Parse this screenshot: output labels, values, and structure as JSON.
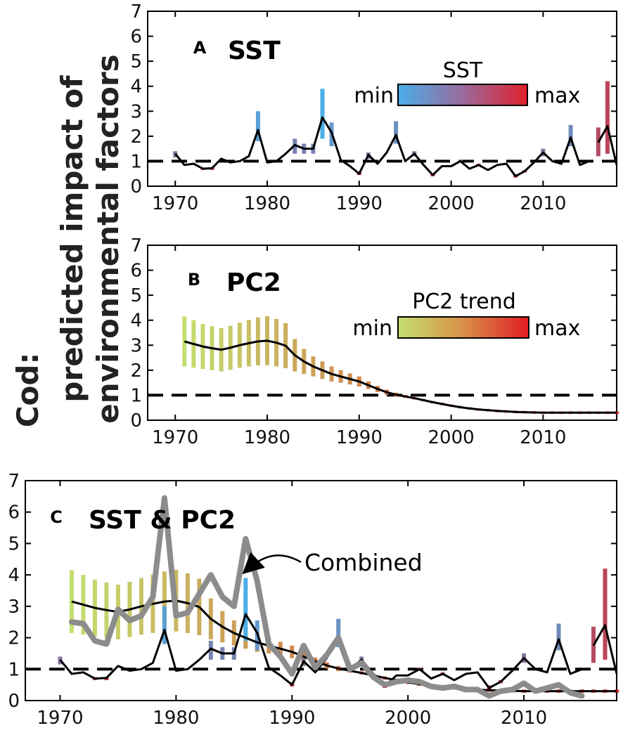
{
  "y_axis_label": {
    "line1": "Cod:",
    "line2": "predicted impact of",
    "line3": "environmental factors"
  },
  "colors": {
    "sst_min": "#4aaee8",
    "sst_max": "#e0202c",
    "pc2_min": "#c3e070",
    "pc2_max": "#e01c24",
    "combined": "#8c8c8c",
    "model_line": "#000000"
  },
  "chart_data": [
    {
      "type": "line",
      "panel_letter": "A",
      "title": "SST",
      "xlim": [
        1967,
        2018
      ],
      "ylim": [
        0,
        7
      ],
      "xticks": [
        1970,
        1980,
        1990,
        2000,
        2010
      ],
      "yticks": [
        0,
        1,
        2,
        3,
        4,
        5,
        6,
        7
      ],
      "reference_line": 1,
      "colorbar": {
        "label": "SST",
        "min_label": "min",
        "max_label": "max"
      },
      "x": [
        1970,
        1971,
        1972,
        1973,
        1974,
        1975,
        1976,
        1977,
        1978,
        1979,
        1980,
        1981,
        1982,
        1983,
        1984,
        1985,
        1986,
        1987,
        1988,
        1989,
        1990,
        1991,
        1992,
        1993,
        1994,
        1995,
        1996,
        1997,
        1998,
        1999,
        2000,
        2001,
        2002,
        2003,
        2004,
        2005,
        2006,
        2007,
        2008,
        2009,
        2010,
        2011,
        2012,
        2013,
        2014,
        2015
      ],
      "y": [
        1.3,
        0.85,
        0.9,
        0.7,
        0.72,
        1.1,
        0.95,
        1.0,
        1.2,
        2.25,
        0.95,
        1.0,
        1.3,
        1.65,
        1.5,
        1.5,
        2.75,
        2.15,
        1.05,
        0.8,
        0.5,
        1.25,
        0.9,
        1.35,
        2.05,
        1.0,
        1.3,
        0.85,
        0.45,
        0.8,
        0.8,
        1.0,
        0.7,
        0.85,
        0.65,
        0.85,
        0.9,
        0.4,
        0.6,
        0.95,
        1.35,
        1.0,
        0.9,
        1.95,
        0.85,
        1.0
      ],
      "bars": [
        {
          "x": 1970,
          "low": 1.15,
          "high": 1.4,
          "t": 0.4
        },
        {
          "x": 1973,
          "low": 0.65,
          "high": 0.75,
          "t": 0.85
        },
        {
          "x": 1974,
          "low": 0.65,
          "high": 0.75,
          "t": 0.85
        },
        {
          "x": 1979,
          "low": 1.8,
          "high": 3.0,
          "t": 0.1
        },
        {
          "x": 1983,
          "low": 1.3,
          "high": 1.9,
          "t": 0.3
        },
        {
          "x": 1984,
          "low": 1.3,
          "high": 1.7,
          "t": 0.3
        },
        {
          "x": 1985,
          "low": 1.3,
          "high": 1.7,
          "t": 0.3
        },
        {
          "x": 1986,
          "low": 1.9,
          "high": 3.9,
          "t": 0.0
        },
        {
          "x": 1987,
          "low": 1.6,
          "high": 2.55,
          "t": 0.15
        },
        {
          "x": 1990,
          "low": 0.45,
          "high": 0.58,
          "t": 0.9
        },
        {
          "x": 1991,
          "low": 1.1,
          "high": 1.35,
          "t": 0.4
        },
        {
          "x": 1994,
          "low": 1.7,
          "high": 2.6,
          "t": 0.2
        },
        {
          "x": 1996,
          "low": 1.2,
          "high": 1.4,
          "t": 0.4
        },
        {
          "x": 1998,
          "low": 0.4,
          "high": 0.52,
          "t": 0.9
        },
        {
          "x": 2001,
          "low": 0.95,
          "high": 1.05,
          "t": 0.5
        },
        {
          "x": 2003,
          "low": 0.8,
          "high": 0.9,
          "t": 0.7
        },
        {
          "x": 2007,
          "low": 0.35,
          "high": 0.48,
          "t": 0.95
        },
        {
          "x": 2008,
          "low": 0.55,
          "high": 0.65,
          "t": 0.8
        },
        {
          "x": 2010,
          "low": 1.2,
          "high": 1.5,
          "t": 0.4
        },
        {
          "x": 2013,
          "low": 1.6,
          "high": 2.45,
          "t": 0.25
        },
        {
          "x": 2016,
          "low": 1.2,
          "high": 2.35,
          "t": 0.7
        },
        {
          "x": 2017,
          "low": 1.3,
          "high": 4.2,
          "t": 0.75
        }
      ],
      "tail": {
        "x": [
          2016,
          2017,
          2018
        ],
        "y": [
          1.75,
          2.4,
          0.85
        ]
      }
    },
    {
      "type": "line",
      "panel_letter": "B",
      "title": "PC2",
      "xlim": [
        1967,
        2018
      ],
      "ylim": [
        0,
        7
      ],
      "xticks": [
        1970,
        1980,
        1990,
        2000,
        2010
      ],
      "yticks": [
        0,
        1,
        2,
        3,
        4,
        5,
        6,
        7
      ],
      "reference_line": 1,
      "colorbar": {
        "label": "PC2 trend",
        "min_label": "min",
        "max_label": "max"
      },
      "x": [
        1971,
        1972,
        1973,
        1974,
        1975,
        1976,
        1977,
        1978,
        1979,
        1980,
        1981,
        1982,
        1983,
        1984,
        1985,
        1986,
        1987,
        1988,
        1989,
        1990,
        1991,
        1992,
        1993,
        1994,
        1995,
        1996,
        1997,
        1998,
        1999,
        2000,
        2001,
        2002,
        2003,
        2004,
        2005,
        2006,
        2007,
        2008,
        2009,
        2010,
        2011,
        2012,
        2013,
        2014,
        2015,
        2016,
        2017,
        2018
      ],
      "y": [
        3.15,
        3.05,
        2.95,
        2.88,
        2.82,
        2.9,
        3.0,
        3.08,
        3.15,
        3.18,
        3.1,
        2.98,
        2.6,
        2.35,
        2.15,
        2.0,
        1.85,
        1.75,
        1.65,
        1.55,
        1.4,
        1.25,
        1.12,
        1.02,
        0.95,
        0.88,
        0.8,
        0.72,
        0.65,
        0.58,
        0.52,
        0.47,
        0.43,
        0.4,
        0.37,
        0.35,
        0.33,
        0.32,
        0.31,
        0.3,
        0.3,
        0.3,
        0.3,
        0.3,
        0.3,
        0.3,
        0.3,
        0.3
      ],
      "band_half_width": [
        1.0,
        0.95,
        0.9,
        0.88,
        0.87,
        0.88,
        0.9,
        0.93,
        0.96,
        0.98,
        0.95,
        0.9,
        0.65,
        0.5,
        0.4,
        0.35,
        0.3,
        0.25,
        0.22,
        0.2,
        0.15,
        0.12,
        0.1,
        0.08,
        0.06,
        0.05,
        0.05,
        0.05,
        0.05,
        0.05,
        0.05,
        0.05,
        0.05,
        0.05,
        0.05,
        0.05,
        0.05,
        0.05,
        0.05,
        0.05,
        0.05,
        0.05,
        0.05,
        0.05,
        0.05,
        0.05,
        0.05,
        0.05
      ]
    },
    {
      "type": "line",
      "panel_letter": "C",
      "title": "SST & PC2",
      "annotation": "Combined",
      "xlim": [
        1967,
        2018
      ],
      "ylim": [
        0,
        7
      ],
      "xticks": [
        1970,
        1980,
        1990,
        2000,
        2010
      ],
      "yticks": [
        0,
        1,
        2,
        3,
        4,
        5,
        6,
        7
      ],
      "reference_line": 1,
      "combined": {
        "x": [
          1971,
          1972,
          1973,
          1974,
          1975,
          1976,
          1977,
          1978,
          1979,
          1980,
          1981,
          1982,
          1983,
          1984,
          1985,
          1986,
          1987,
          1988,
          1989,
          1990,
          1991,
          1992,
          1993,
          1994,
          1995,
          1996,
          1997,
          1998,
          1999,
          2000,
          2001,
          2002,
          2003,
          2004,
          2005,
          2006,
          2007,
          2008,
          2009,
          2010,
          2011,
          2012,
          2013,
          2014,
          2015
        ],
        "y": [
          2.5,
          2.45,
          1.9,
          1.8,
          2.9,
          2.55,
          2.7,
          3.3,
          6.45,
          2.7,
          2.8,
          3.4,
          4.0,
          3.3,
          3.0,
          5.15,
          3.8,
          1.8,
          1.4,
          0.85,
          1.75,
          1.05,
          1.45,
          2.0,
          1.0,
          1.2,
          0.75,
          0.5,
          0.6,
          0.65,
          0.6,
          0.45,
          0.4,
          0.45,
          0.35,
          0.35,
          0.15,
          0.3,
          0.35,
          0.55,
          0.3,
          0.4,
          0.5,
          0.25,
          0.15
        ]
      }
    }
  ]
}
